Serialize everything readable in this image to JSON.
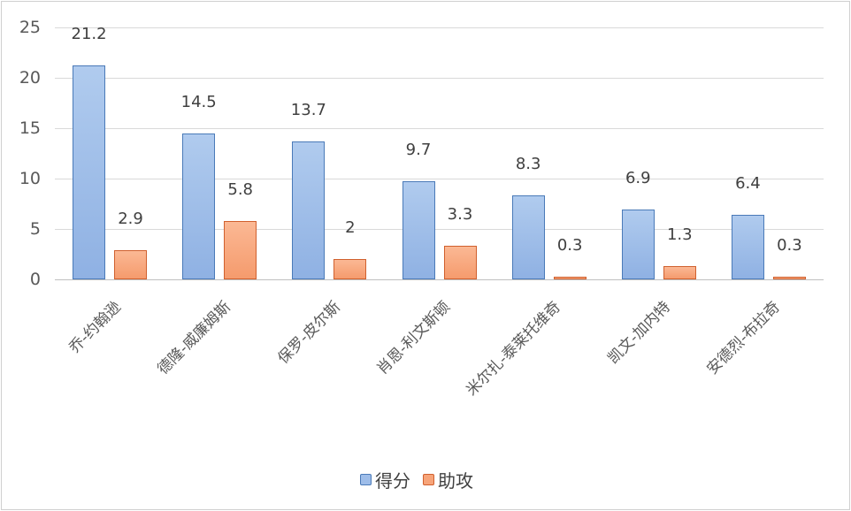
{
  "chart_data": {
    "type": "bar",
    "title": "",
    "xlabel": "",
    "ylabel": "",
    "ylim": [
      0,
      25
    ],
    "yticks": [
      0,
      5,
      10,
      15,
      20,
      25
    ],
    "grid": true,
    "legend_position": "bottom",
    "categories": [
      "乔-约翰逊",
      "德隆-威廉姆斯",
      "保罗-皮尔斯",
      "肖恩-利文斯顿",
      "米尔扎-泰莱托维奇",
      "凯文-加内特",
      "安德烈-布拉奇"
    ],
    "series": [
      {
        "name": "得分",
        "color": "#9ebde9",
        "values": [
          21.2,
          14.5,
          13.7,
          9.7,
          8.3,
          6.9,
          6.4
        ]
      },
      {
        "name": "助攻",
        "color": "#f7a479",
        "values": [
          2.9,
          5.8,
          2,
          3.3,
          0.3,
          1.3,
          0.3
        ]
      }
    ]
  },
  "legend": {
    "items": [
      {
        "label": "得分"
      },
      {
        "label": "助攻"
      }
    ]
  }
}
